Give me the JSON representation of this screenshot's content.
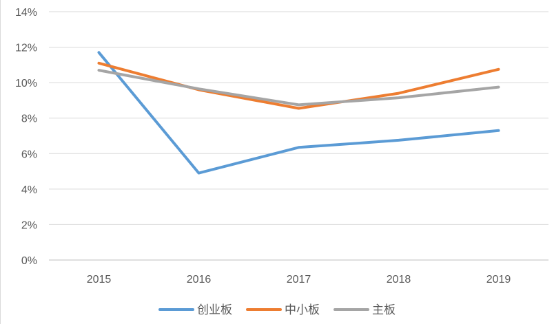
{
  "chart_data": {
    "type": "line",
    "title": "",
    "xlabel": "",
    "ylabel": "",
    "categories": [
      "2015",
      "2016",
      "2017",
      "2018",
      "2019"
    ],
    "ylim": [
      0,
      14
    ],
    "y_ticks": [
      "0%",
      "2%",
      "4%",
      "6%",
      "8%",
      "10%",
      "12%",
      "14%"
    ],
    "grid": true,
    "legend_position": "bottom",
    "series": [
      {
        "name": "创业板",
        "color": "#5B9BD5",
        "values": [
          11.7,
          4.9,
          6.35,
          6.75,
          7.3
        ]
      },
      {
        "name": "中小板",
        "color": "#ED7D31",
        "values": [
          11.1,
          9.6,
          8.55,
          9.4,
          10.75
        ]
      },
      {
        "name": "主板",
        "color": "#A5A5A5",
        "values": [
          10.7,
          9.65,
          8.75,
          9.15,
          9.75
        ]
      }
    ]
  }
}
